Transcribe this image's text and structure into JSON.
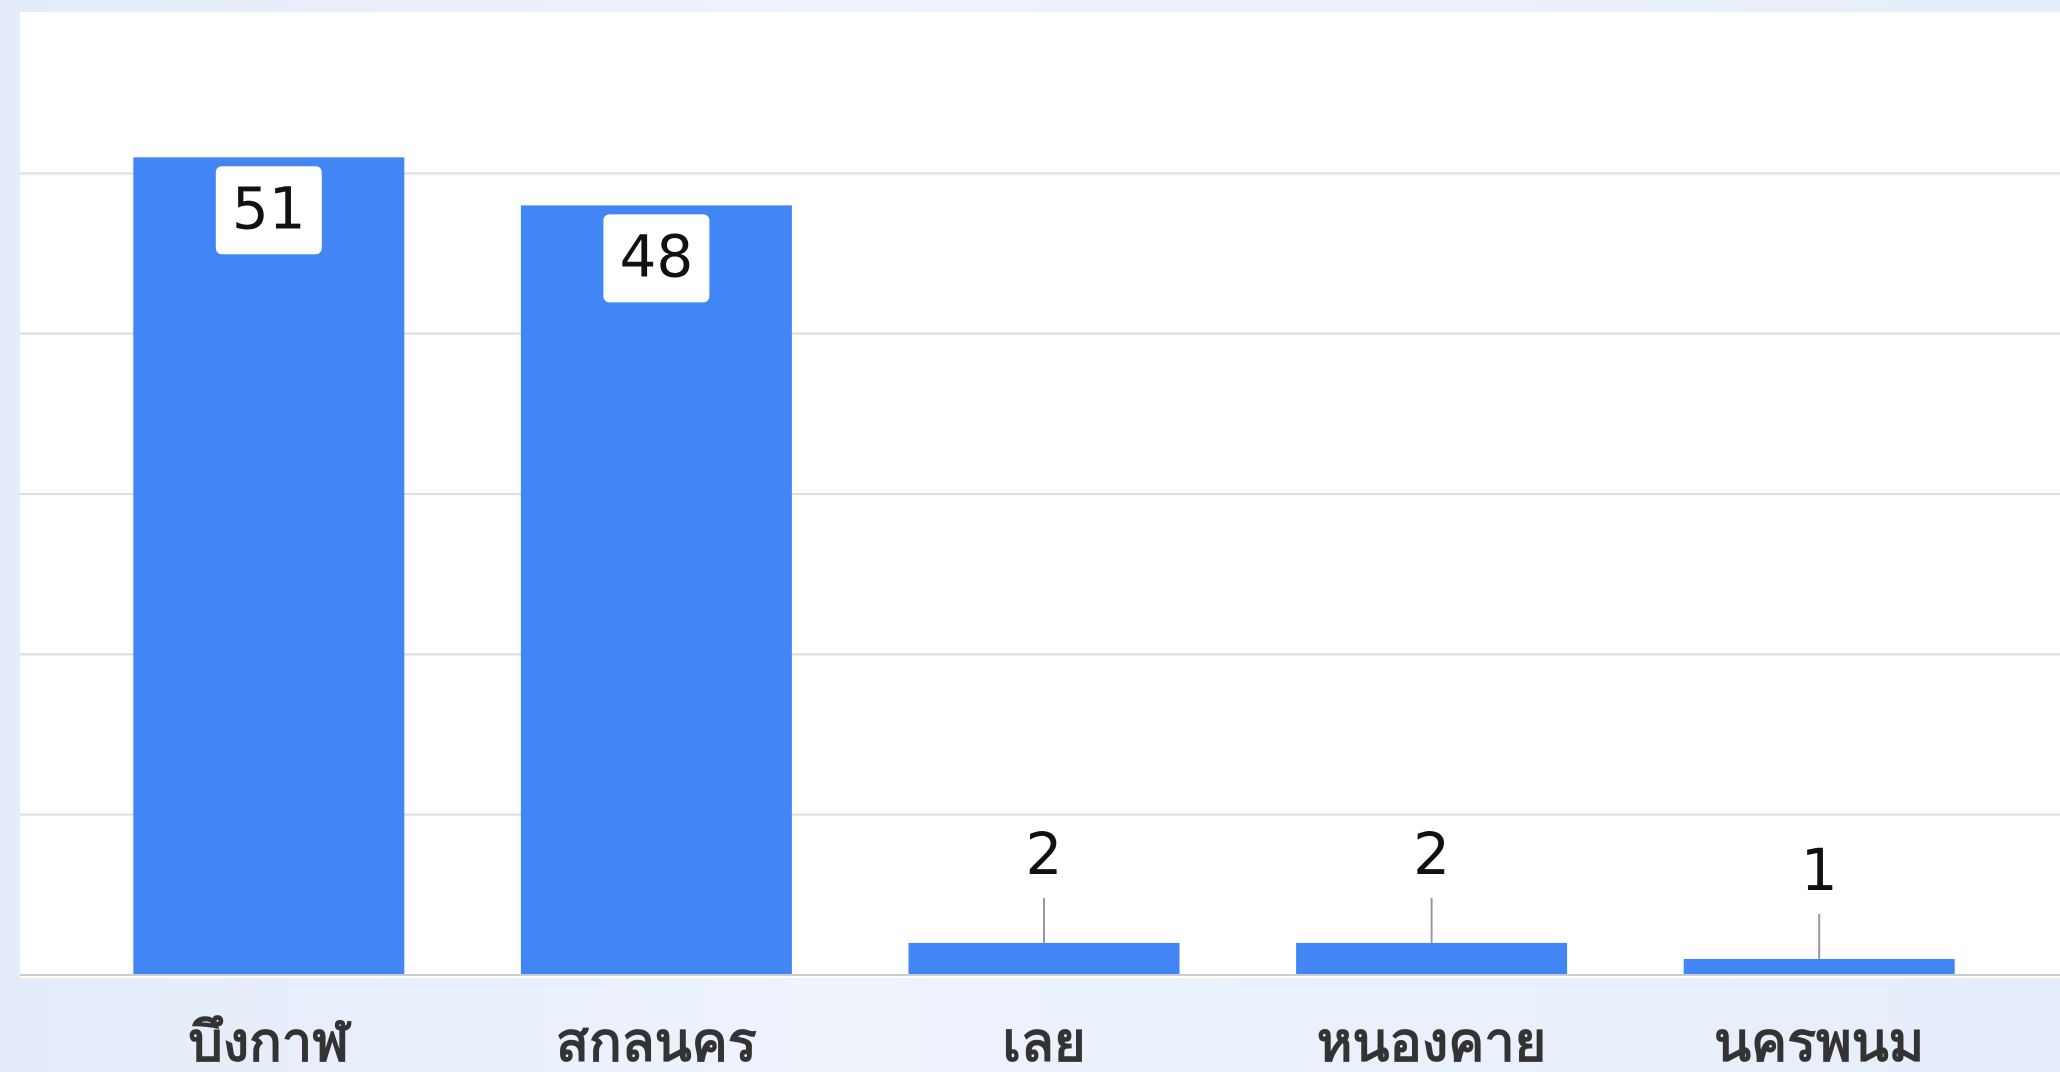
{
  "chart_data": {
    "type": "bar",
    "categories": [
      "บึงกาฬ",
      "สกลนคร",
      "เลย",
      "หนองคาย",
      "นครพนม"
    ],
    "values": [
      51,
      48,
      2,
      2,
      1
    ],
    "color": "#4285f4",
    "ylim": [
      0,
      60
    ],
    "yticks": [
      0,
      10,
      20,
      30,
      40,
      50
    ],
    "grid": true
  }
}
